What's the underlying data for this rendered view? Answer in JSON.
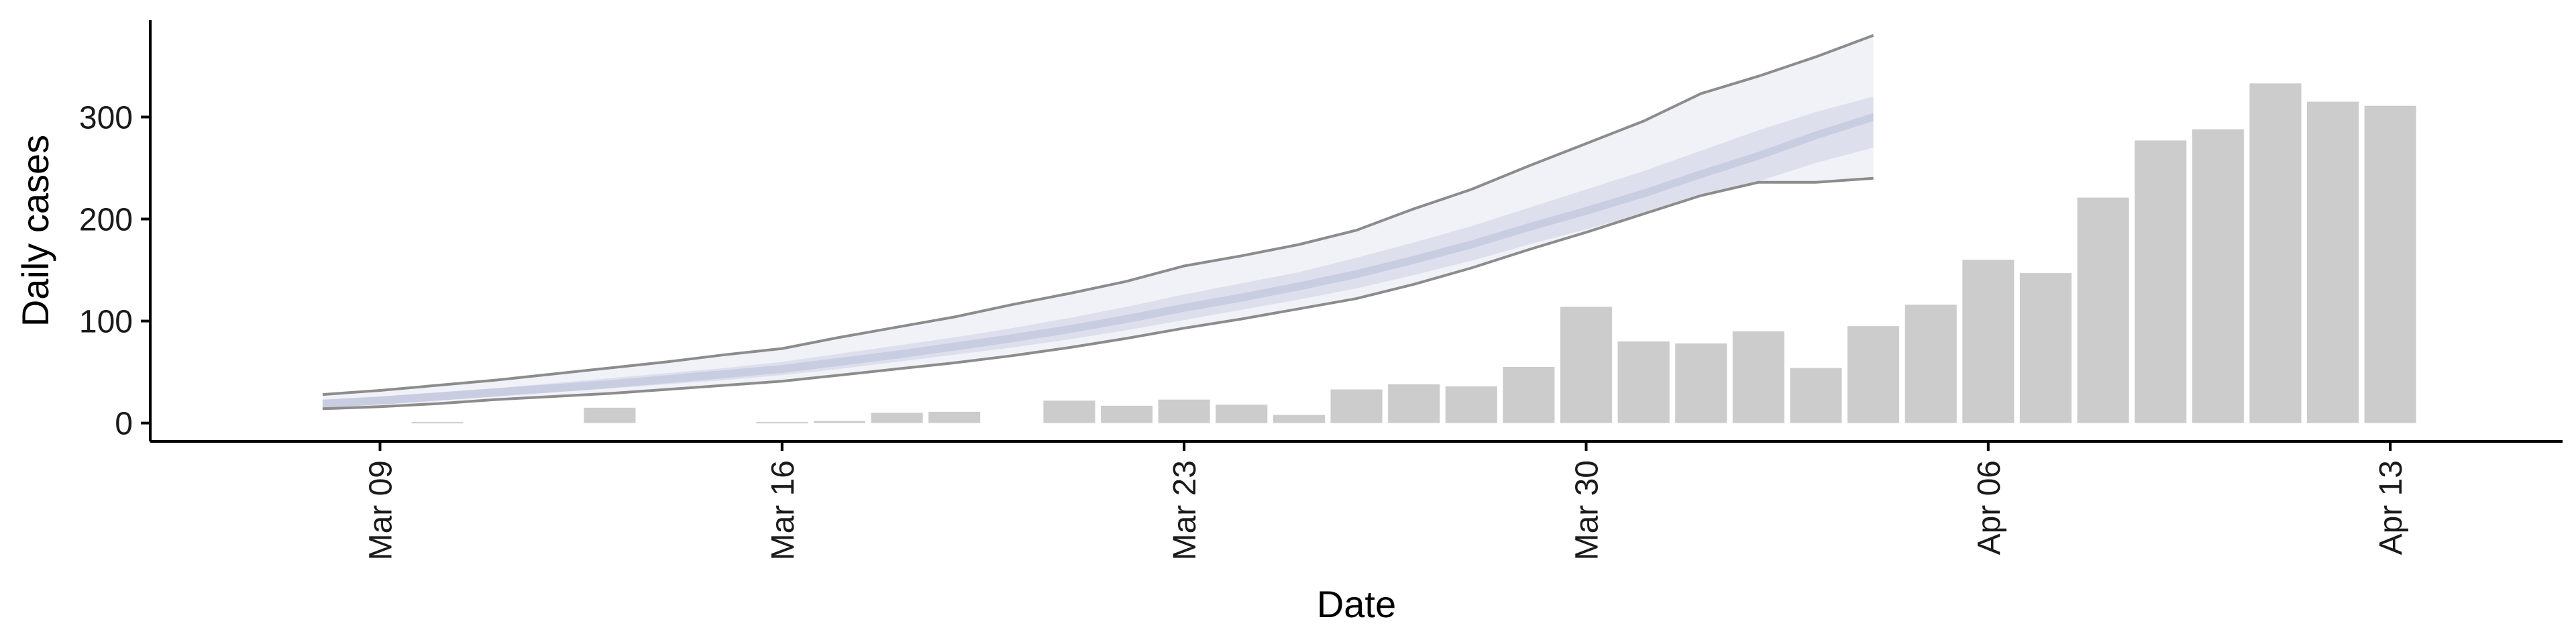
{
  "chart_data": {
    "type": "bar",
    "xlabel": "Date",
    "ylabel": "Daily cases",
    "ylim": [
      -18,
      395
    ],
    "xlim": [
      "2020-03-05",
      "2020-04-16"
    ],
    "y_ticks": [
      0,
      100,
      200,
      300
    ],
    "y_tick_labels": [
      "0",
      "100",
      "200",
      "300"
    ],
    "x_ticks": [
      "2020-03-09",
      "2020-03-16",
      "2020-03-23",
      "2020-03-30",
      "2020-04-06",
      "2020-04-13"
    ],
    "x_tick_labels": [
      "Mar 09",
      "Mar 16",
      "Mar 23",
      "Mar 30",
      "Apr 06",
      "Apr 13"
    ],
    "grid": false,
    "legend": "none",
    "colors": {
      "bars": "#cccccc",
      "axis": "#000000",
      "outer_band": "#f1f2f7",
      "inner_band": "#dde0ec",
      "median_band": "#c8cde2",
      "band_edges": "#8c8c8c"
    },
    "bars": {
      "x": [
        "2020-03-10",
        "2020-03-13",
        "2020-03-16",
        "2020-03-17",
        "2020-03-18",
        "2020-03-19",
        "2020-03-21",
        "2020-03-22",
        "2020-03-23",
        "2020-03-24",
        "2020-03-25",
        "2020-03-26",
        "2020-03-27",
        "2020-03-28",
        "2020-03-29",
        "2020-03-30",
        "2020-03-31",
        "2020-04-01",
        "2020-04-02",
        "2020-04-03",
        "2020-04-04",
        "2020-04-05",
        "2020-04-06",
        "2020-04-07",
        "2020-04-08",
        "2020-04-09",
        "2020-04-10",
        "2020-04-11",
        "2020-04-12",
        "2020-04-13"
      ],
      "values": [
        1,
        15,
        1,
        2,
        10,
        11,
        22,
        17,
        23,
        18,
        8,
        33,
        38,
        36,
        55,
        114,
        80,
        78,
        90,
        54,
        95,
        116,
        160,
        147,
        221,
        277,
        288,
        333,
        315,
        311
      ]
    },
    "estimate": {
      "x": [
        "2020-03-08",
        "2020-03-09",
        "2020-03-10",
        "2020-03-11",
        "2020-03-12",
        "2020-03-13",
        "2020-03-14",
        "2020-03-15",
        "2020-03-16",
        "2020-03-17",
        "2020-03-18",
        "2020-03-19",
        "2020-03-20",
        "2020-03-21",
        "2020-03-22",
        "2020-03-23",
        "2020-03-24",
        "2020-03-25",
        "2020-03-26",
        "2020-03-27",
        "2020-03-28",
        "2020-03-29",
        "2020-03-30",
        "2020-03-31",
        "2020-04-01",
        "2020-04-02",
        "2020-04-03",
        "2020-04-04"
      ],
      "upper_90": [
        28,
        32,
        37,
        42,
        48,
        54,
        60,
        67,
        73,
        84,
        94,
        104,
        116,
        127,
        139,
        154,
        164,
        175,
        189,
        210,
        229,
        252,
        274,
        296,
        323,
        340,
        359,
        380
      ],
      "upper_50": [
        22,
        26,
        30,
        34,
        39,
        44,
        49,
        54,
        60,
        68,
        76,
        84,
        93,
        103,
        114,
        126,
        137,
        148,
        162,
        177,
        193,
        211,
        229,
        247,
        267,
        287,
        305,
        320
      ],
      "median": [
        19,
        22,
        26,
        30,
        34,
        38,
        43,
        48,
        53,
        60,
        67,
        75,
        83,
        92,
        102,
        113,
        123,
        134,
        146,
        160,
        175,
        192,
        208,
        225,
        244,
        262,
        282,
        300
      ],
      "lower_50": [
        17,
        20,
        23,
        27,
        30,
        34,
        38,
        42,
        47,
        53,
        60,
        67,
        74,
        82,
        91,
        101,
        111,
        121,
        132,
        145,
        159,
        175,
        190,
        205,
        222,
        237,
        255,
        270
      ],
      "lower_90": [
        14,
        16,
        19,
        23,
        26,
        29,
        33,
        37,
        41,
        47,
        53,
        59,
        66,
        74,
        83,
        93,
        102,
        112,
        122,
        136,
        152,
        170,
        187,
        205,
        223,
        236,
        236,
        240
      ]
    }
  }
}
